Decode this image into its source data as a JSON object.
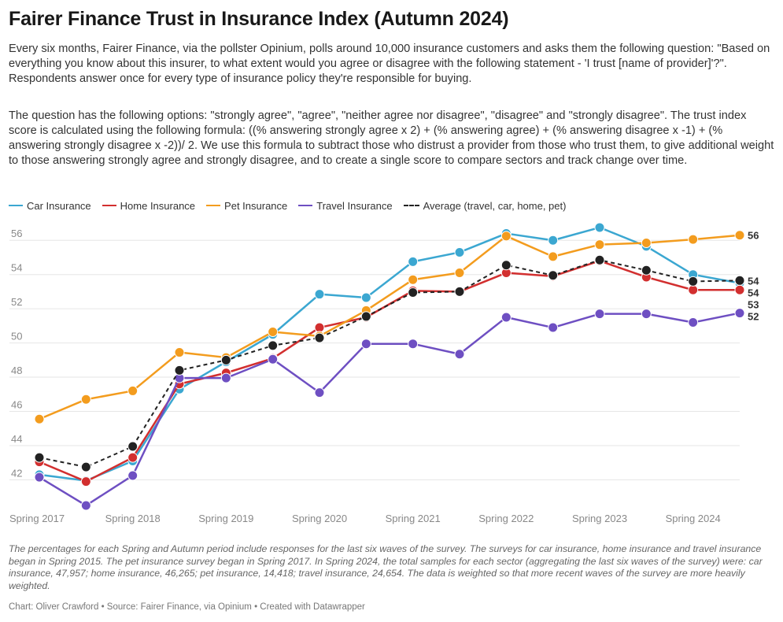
{
  "title": "Fairer Finance Trust in Insurance Index (Autumn 2024)",
  "description_1": "Every six months, Fairer Finance, via the pollster Opinium, polls around 10,000 insurance customers and asks them the following question: \"Based on everything you know about this insurer, to what extent would you agree or disagree with the following statement - 'I trust [name of provider]'?\". Respondents answer once for every type of insurance policy they're responsible for buying.",
  "description_2": "The question has the following options: \"strongly agree\", \"agree\", \"neither agree nor disagree\", \"disagree\" and \"strongly disagree\". The trust index score is calculated using the following formula: ((% answering strongly agree x 2) + (% answering agree) + (% answering disagree x -1) + (% answering strongly disagree x -2))/ 2. We use this formula to subtract those who distrust a provider from those who trust them, to give additional weight to those answering strongly agree and strongly disagree, and to create a single score to compare sectors and track change over time.",
  "footnote": "The percentages for each Spring and Autumn period include responses for the last six waves of the survey. The surveys for car insurance, home insurance and travel insurance began in Spring 2015. The pet insurance survey began in Spring 2017. In Spring 2024, the total samples for each sector (aggregating the last six waves of the survey) were: car insurance, 47,957; home insurance, 46,265; pet insurance, 14,418; travel insurance, 24,654. The data is weighted so that more recent waves of the survey are more heavily weighted.",
  "credit": "Chart: Oliver Crawford • Source: Fairer Finance, via Opinium • Created with Datawrapper",
  "chart_data": {
    "type": "line",
    "x": [
      "Spring 2017",
      "Autumn 2017",
      "Spring 2018",
      "Autumn 2018",
      "Spring 2019",
      "Autumn 2019",
      "Spring 2020",
      "Autumn 2020",
      "Spring 2021",
      "Autumn 2021",
      "Spring 2022",
      "Autumn 2022",
      "Spring 2023",
      "Autumn 2023",
      "Spring 2024",
      "Autumn 2024"
    ],
    "x_tick_labels": [
      "Spring 2017",
      "Spring 2018",
      "Spring 2019",
      "Spring 2020",
      "Spring 2021",
      "Spring 2022",
      "Spring 2023",
      "Spring 2024"
    ],
    "y_ticks": [
      42,
      44,
      46,
      48,
      50,
      52,
      54,
      56
    ],
    "ylim": [
      40.5,
      57.3
    ],
    "grid": true,
    "legend_position": "top",
    "series": [
      {
        "name": "Car Insurance",
        "color": "#3ba7d1",
        "dashed": false,
        "end_label": "54",
        "values": [
          42.3,
          41.95,
          43.1,
          47.3,
          48.9,
          50.5,
          52.85,
          52.65,
          54.75,
          55.3,
          56.4,
          56.0,
          56.75,
          55.65,
          54.0,
          53.5
        ]
      },
      {
        "name": "Home Insurance",
        "color": "#d22f2f",
        "dashed": false,
        "end_label": "53",
        "values": [
          43.05,
          41.9,
          43.3,
          47.6,
          48.25,
          49.1,
          50.9,
          51.5,
          53.05,
          53.0,
          54.1,
          53.9,
          54.8,
          53.85,
          53.1,
          53.1
        ]
      },
      {
        "name": "Pet Insurance",
        "color": "#f39c1e",
        "dashed": false,
        "end_label": "56",
        "values": [
          45.55,
          46.7,
          47.2,
          49.45,
          49.15,
          50.65,
          50.4,
          51.9,
          53.7,
          54.1,
          56.25,
          55.05,
          55.75,
          55.85,
          56.05,
          56.3
        ]
      },
      {
        "name": "Travel Insurance",
        "color": "#6e4fc2",
        "dashed": false,
        "end_label": "52",
        "values": [
          42.15,
          40.5,
          42.25,
          47.95,
          47.95,
          49.05,
          47.1,
          49.95,
          49.95,
          49.35,
          51.5,
          50.9,
          51.7,
          51.7,
          51.2,
          51.75
        ]
      },
      {
        "name": "Average (travel, car, home, pet)",
        "color": "#222222",
        "dashed": true,
        "end_label": "54",
        "values": [
          43.3,
          42.75,
          43.95,
          48.4,
          49.0,
          49.85,
          50.3,
          51.55,
          52.95,
          53.0,
          54.55,
          53.95,
          54.85,
          54.25,
          53.6,
          53.65
        ]
      }
    ]
  }
}
